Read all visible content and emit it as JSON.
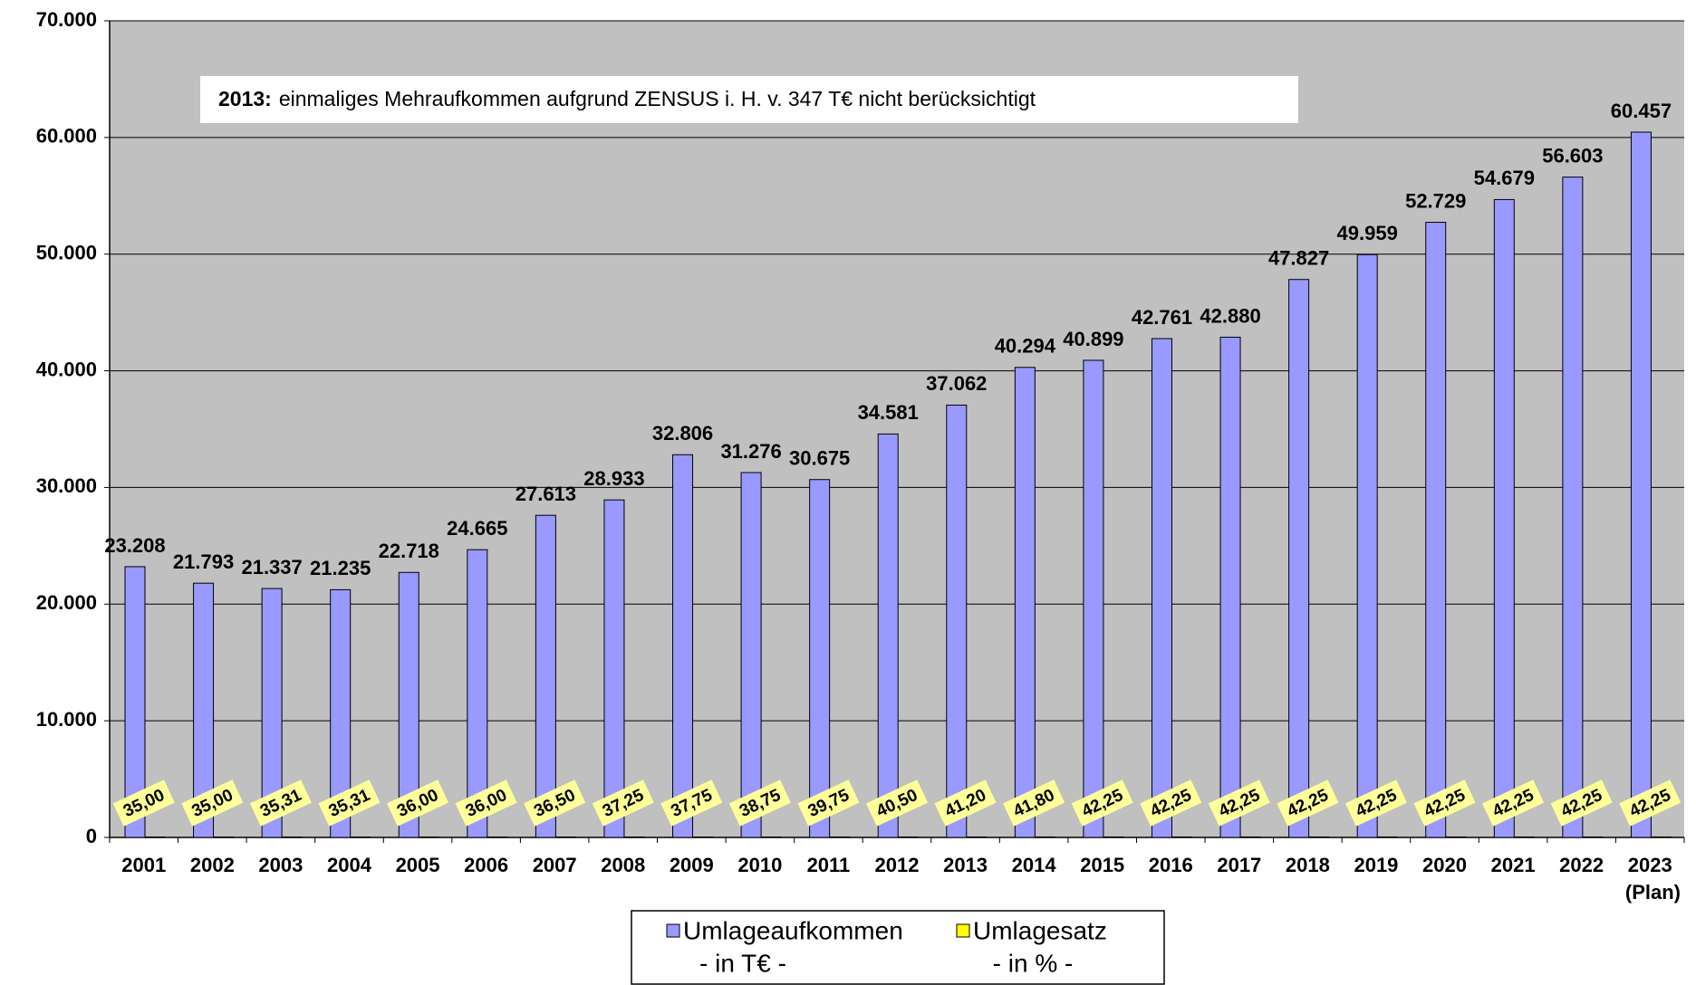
{
  "chart_data": {
    "type": "bar",
    "categories": [
      "2001",
      "2002",
      "2003",
      "2004",
      "2005",
      "2006",
      "2007",
      "2008",
      "2009",
      "2010",
      "2011",
      "2012",
      "2013",
      "2014",
      "2015",
      "2016",
      "2017",
      "2018",
      "2019",
      "2020",
      "2021",
      "2022",
      "2023 (Plan)"
    ],
    "series": [
      {
        "name": "Umlageaufkommen",
        "unit_label": "- in T€ -",
        "color": "#9999ff",
        "values": [
          23208,
          21793,
          21337,
          21235,
          22718,
          24665,
          27613,
          28933,
          32806,
          31276,
          30675,
          34581,
          37062,
          40294,
          40899,
          42761,
          42880,
          47827,
          49959,
          52729,
          54679,
          56603,
          60457
        ],
        "value_labels": [
          "23.208",
          "21.793",
          "21.337",
          "21.235",
          "22.718",
          "24.665",
          "27.613",
          "28.933",
          "32.806",
          "31.276",
          "30.675",
          "34.581",
          "37.062",
          "40.294",
          "40.899",
          "42.761",
          "42.880",
          "47.827",
          "49.959",
          "52.729",
          "54.679",
          "56.603",
          "60.457"
        ]
      },
      {
        "name": "Umlagesatz",
        "unit_label": "- in % -",
        "color": "#ffff00",
        "values": [
          35,
          35,
          35.31,
          35.31,
          36,
          36,
          36.5,
          37.25,
          37.75,
          38.75,
          39.75,
          40.5,
          41.2,
          41.8,
          42.25,
          42.25,
          42.25,
          42.25,
          42.25,
          42.25,
          42.25,
          42.25,
          42.25
        ],
        "value_labels": [
          "35,00",
          "35,00",
          "35,31",
          "35,31",
          "36,00",
          "36,00",
          "36,50",
          "37,25",
          "37,75",
          "38,75",
          "39,75",
          "40,50",
          "41,20",
          "41,80",
          "42,25",
          "42,25",
          "42,25",
          "42,25",
          "42,25",
          "42,25",
          "42,25",
          "42,25",
          "42,25"
        ]
      }
    ],
    "annotation": {
      "bold": "2013:",
      "text": "einmaliges Mehraufkommen aufgrund ZENSUS i. H. v. 347 T€ nicht berücksichtigt"
    },
    "ylim": [
      0,
      70000
    ],
    "yticks": [
      0,
      {
        "value": 10000,
        "label": "10.000"
      },
      {
        "value": 20000,
        "label": "20.000"
      },
      {
        "value": 30000,
        "label": "30.000"
      },
      {
        "value": 40000,
        "label": "40.000"
      },
      {
        "value": 50000,
        "label": "50.000"
      },
      {
        "value": 60000,
        "label": "60.000"
      },
      {
        "value": 70000,
        "label": "70.000"
      }
    ],
    "grid": true,
    "legend": "bottom"
  }
}
